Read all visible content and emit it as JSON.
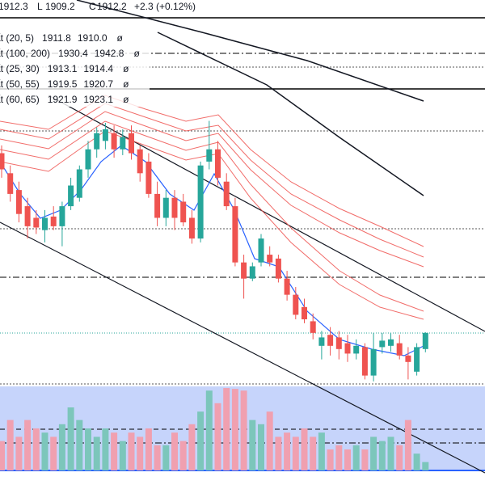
{
  "chart_data": {
    "type": "candlestick",
    "header": [
      "1912.3",
      "L",
      "1909.2",
      "C",
      "1912.2",
      "+2.3 (+0.12%)"
    ],
    "legend": [
      {
        "name": "ất (20, 5)",
        "values": [
          "1911.8",
          "1910.0"
        ],
        "colors": [
          "#ef5350",
          "#2962ff"
        ],
        "mark": "ø"
      },
      {
        "name": "ất (100, 200)",
        "values": [
          "1930.4",
          "1942.8"
        ],
        "colors": [
          "#131722",
          "#131722"
        ],
        "mark": "ø"
      },
      {
        "name": "ất (25, 30)",
        "values": [
          "1913.1",
          "1914.4"
        ],
        "colors": [
          "#ef5350",
          "#ef5350"
        ],
        "mark": "ø"
      },
      {
        "name": "ất (50, 55)",
        "values": [
          "1919.5",
          "1920.7"
        ],
        "colors": [
          "#ef5350",
          "#ef5350"
        ],
        "mark": "ø"
      },
      {
        "name": "ất (60, 65)",
        "values": [
          "1921.9",
          "1923.1"
        ],
        "colors": [
          "#ef5350",
          "#ef5350"
        ],
        "mark": "ø"
      }
    ],
    "open": [
      1940.0,
      1936.9,
      1934.3,
      1931.8,
      1930.0,
      1928.1,
      1930.2,
      1928.7,
      1931.8,
      1933.1,
      1937.5,
      1940.6,
      1941.9,
      1943.1,
      1940.6,
      1943.1,
      1940.6,
      1938.7,
      1933.7,
      1930.0,
      1933.1,
      1932.5,
      1930.0,
      1926.8,
      1938.7,
      1940.6,
      1935.6,
      1931.8,
      1923.1,
      1920.6,
      1923.1,
      1924.3,
      1923.7,
      1920.6,
      1918.1,
      1916.2,
      1914.0,
      1910.2,
      1911.9,
      1911.5,
      1910.6,
      1909.0,
      1910.0,
      1905.6,
      1910.0,
      1910.2,
      1910.6,
      1908.7,
      1906.2,
      1909.7
    ],
    "high": [
      1941.2,
      1938.1,
      1935.6,
      1933.1,
      1931.2,
      1931.2,
      1931.8,
      1932.5,
      1936.2,
      1938.1,
      1941.9,
      1944.0,
      1944.7,
      1944.3,
      1943.7,
      1944.3,
      1941.2,
      1940.0,
      1935.6,
      1934.3,
      1934.3,
      1933.7,
      1931.2,
      1938.7,
      1945.0,
      1941.9,
      1936.9,
      1933.1,
      1924.3,
      1923.1,
      1927.5,
      1925.6,
      1924.3,
      1921.8,
      1919.3,
      1917.5,
      1915.2,
      1912.5,
      1913.1,
      1912.5,
      1911.9,
      1911.2,
      1910.6,
      1912.2,
      1912.2,
      1912.2,
      1911.9,
      1910.0,
      1910.6,
      1912.3
    ],
    "low": [
      1936.2,
      1932.5,
      1929.3,
      1926.8,
      1927.5,
      1926.2,
      1928.1,
      1925.6,
      1931.2,
      1932.5,
      1936.2,
      1939.3,
      1940.6,
      1939.3,
      1939.7,
      1939.0,
      1935.6,
      1933.1,
      1928.7,
      1928.7,
      1928.1,
      1928.7,
      1926.0,
      1926.2,
      1937.5,
      1935.0,
      1931.2,
      1922.5,
      1917.5,
      1920.2,
      1922.5,
      1922.5,
      1920.0,
      1917.2,
      1914.3,
      1913.7,
      1911.2,
      1908.1,
      1908.7,
      1908.1,
      1907.7,
      1908.1,
      1905.0,
      1904.7,
      1909.0,
      1909.3,
      1908.1,
      1905.0,
      1905.6,
      1909.2
    ],
    "close": [
      1937.5,
      1933.7,
      1930.6,
      1928.7,
      1928.5,
      1930.0,
      1928.7,
      1931.8,
      1935.0,
      1937.5,
      1940.6,
      1943.1,
      1943.7,
      1940.6,
      1942.5,
      1940.0,
      1936.9,
      1933.7,
      1930.0,
      1933.1,
      1930.0,
      1929.3,
      1926.8,
      1938.1,
      1940.6,
      1936.2,
      1931.8,
      1923.1,
      1920.6,
      1922.5,
      1926.8,
      1923.1,
      1920.6,
      1918.1,
      1915.0,
      1914.3,
      1912.2,
      1911.5,
      1910.2,
      1909.7,
      1909.0,
      1910.2,
      1905.6,
      1909.7,
      1911.0,
      1911.2,
      1908.7,
      1907.7,
      1910.0,
      1912.2
    ],
    "volume": [
      35,
      60,
      40,
      60,
      50,
      45,
      40,
      55,
      75,
      60,
      50,
      40,
      50,
      45,
      35,
      45,
      40,
      50,
      30,
      30,
      45,
      35,
      55,
      70,
      95,
      80,
      98,
      97,
      95,
      60,
      55,
      70,
      40,
      45,
      40,
      50,
      40,
      45,
      25,
      30,
      25,
      30,
      25,
      40,
      35,
      40,
      30,
      60,
      20,
      10
    ],
    "ylim": [
      1904.3,
      1963.7
    ],
    "vlim": [
      0,
      100
    ],
    "up_color": "#26a69a",
    "down_color": "#ef5350",
    "up_volume_color": "#7cc6bb",
    "down_volume_color": "#f0a0b0"
  }
}
